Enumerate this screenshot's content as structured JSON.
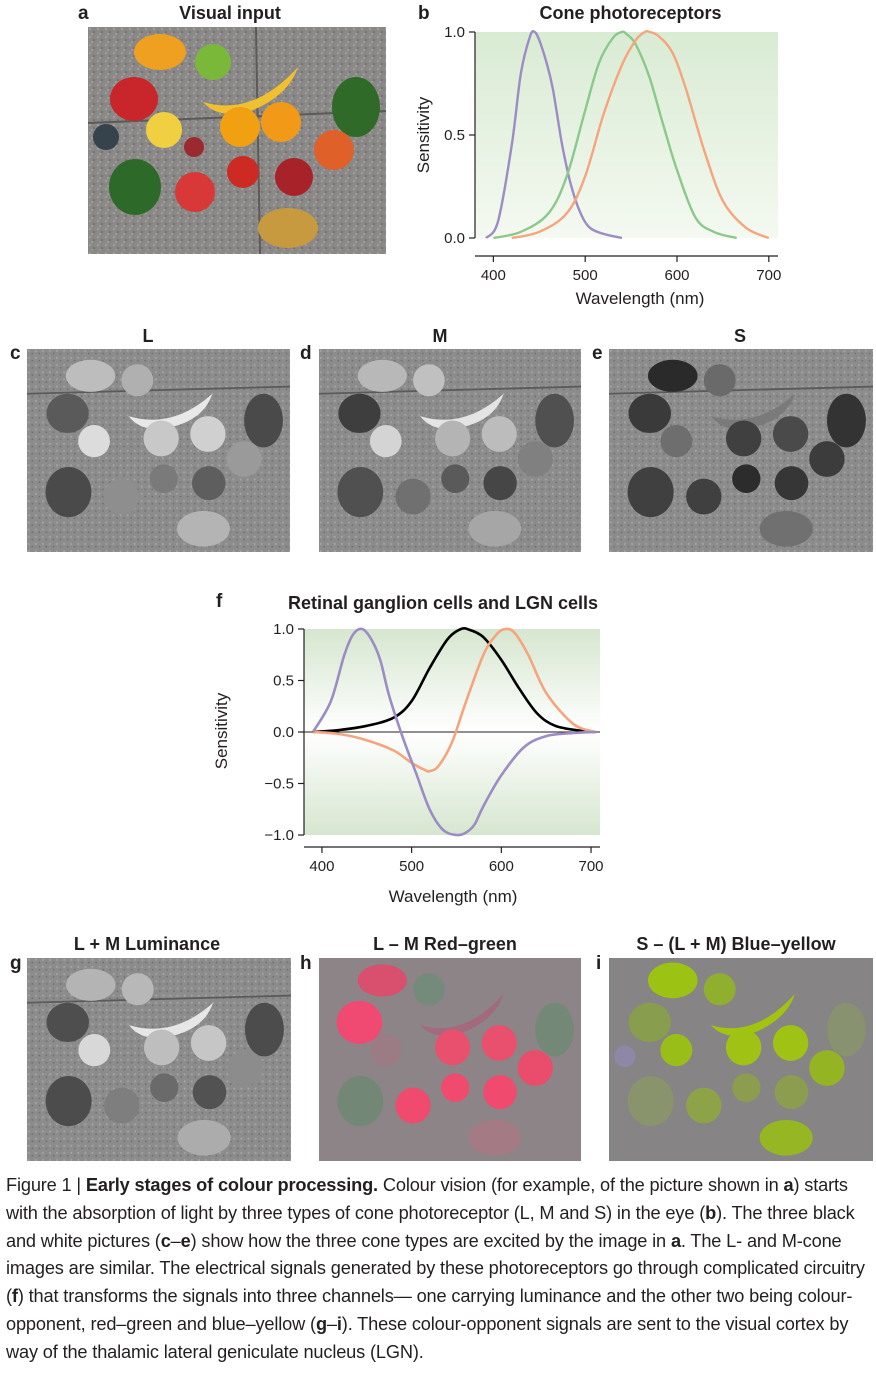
{
  "panels": {
    "a": {
      "letter": "a",
      "title": "Visual input"
    },
    "b": {
      "letter": "b",
      "title": "Cone photoreceptors"
    },
    "c": {
      "letter": "c",
      "title": "L"
    },
    "d": {
      "letter": "d",
      "title": "M"
    },
    "e": {
      "letter": "e",
      "title": "S"
    },
    "f": {
      "letter": "f",
      "title": "Retinal ganglion cells and LGN cells"
    },
    "g": {
      "letter": "g",
      "title": "L + M Luminance"
    },
    "h": {
      "letter": "h",
      "title": "L – M Red–green"
    },
    "i": {
      "letter": "i",
      "title": "S – (L + M) Blue–yellow"
    }
  },
  "chart_data": [
    {
      "type": "line",
      "panel": "b",
      "title": "Cone photoreceptors",
      "xlabel": "Wavelength (nm)",
      "ylabel": "Sensitivity",
      "xlim": [
        380,
        710
      ],
      "ylim": [
        0,
        1
      ],
      "xticks": [
        "400",
        "500",
        "600",
        "700"
      ],
      "yticks": [
        "0.0",
        "0.5",
        "1.0"
      ],
      "colors": {
        "S": "#9b8dc4",
        "M": "#8cc88c",
        "L": "#f4a57e",
        "bg_top": "#d9ebd3",
        "bg_bottom": "#f3f8ef"
      },
      "series": [
        {
          "key": "S",
          "x": [
            392,
            405,
            420,
            430,
            440,
            445,
            450,
            458,
            465,
            475,
            485,
            495,
            505,
            520,
            540
          ],
          "y": [
            0.0,
            0.08,
            0.45,
            0.8,
            0.98,
            1.0,
            0.96,
            0.85,
            0.72,
            0.45,
            0.25,
            0.12,
            0.05,
            0.02,
            0.0
          ]
        },
        {
          "key": "M",
          "x": [
            400,
            430,
            460,
            480,
            500,
            515,
            530,
            540,
            545,
            555,
            570,
            585,
            600,
            620,
            640,
            665
          ],
          "y": [
            0.0,
            0.03,
            0.12,
            0.3,
            0.62,
            0.85,
            0.97,
            1.0,
            0.99,
            0.94,
            0.78,
            0.55,
            0.33,
            0.1,
            0.03,
            0.0
          ]
        },
        {
          "key": "L",
          "x": [
            420,
            450,
            480,
            500,
            520,
            540,
            555,
            565,
            570,
            580,
            595,
            610,
            630,
            650,
            675,
            700
          ],
          "y": [
            0.0,
            0.03,
            0.12,
            0.3,
            0.6,
            0.84,
            0.96,
            1.0,
            1.0,
            0.98,
            0.9,
            0.72,
            0.42,
            0.18,
            0.05,
            0.0
          ]
        }
      ]
    },
    {
      "type": "line",
      "panel": "f",
      "title": "Retinal ganglion cells and LGN cells",
      "xlabel": "Wavelength (nm)",
      "ylabel": "Sensitivity",
      "xlim": [
        380,
        710
      ],
      "ylim": [
        -1,
        1
      ],
      "xticks": [
        "400",
        "500",
        "600",
        "700"
      ],
      "yticks": [
        "−1.0",
        "−0.5",
        "0.0",
        "0.5",
        "1.0"
      ],
      "colors": {
        "luminance": "#000000",
        "red_green": "#f4a57e",
        "blue_yellow": "#9b8dc4",
        "bg_edge": "#d6e6cf",
        "bg_mid": "#ffffff"
      },
      "series": [
        {
          "key": "luminance",
          "x": [
            390,
            420,
            450,
            480,
            500,
            520,
            540,
            555,
            565,
            580,
            600,
            620,
            640,
            660,
            690,
            705
          ],
          "y": [
            0.0,
            0.02,
            0.06,
            0.14,
            0.3,
            0.62,
            0.9,
            1.0,
            0.99,
            0.92,
            0.7,
            0.42,
            0.18,
            0.06,
            0.01,
            0.0
          ]
        },
        {
          "key": "red_green",
          "x": [
            390,
            420,
            450,
            480,
            500,
            515,
            520,
            530,
            545,
            560,
            580,
            595,
            605,
            615,
            630,
            650,
            680,
            705
          ],
          "y": [
            0.0,
            -0.02,
            -0.08,
            -0.18,
            -0.3,
            -0.37,
            -0.38,
            -0.33,
            -0.1,
            0.28,
            0.75,
            0.95,
            1.0,
            0.96,
            0.75,
            0.38,
            0.08,
            0.0
          ]
        },
        {
          "key": "blue_yellow",
          "x": [
            390,
            410,
            425,
            435,
            445,
            455,
            465,
            475,
            490,
            505,
            520,
            535,
            550,
            560,
            570,
            580,
            600,
            625,
            650,
            680,
            705
          ],
          "y": [
            0.0,
            0.3,
            0.75,
            0.95,
            1.0,
            0.9,
            0.7,
            0.35,
            -0.05,
            -0.4,
            -0.75,
            -0.95,
            -1.0,
            -0.98,
            -0.9,
            -0.72,
            -0.42,
            -0.15,
            -0.04,
            -0.01,
            0.0
          ]
        }
      ]
    }
  ],
  "caption": {
    "prefix": "Figure 1 | ",
    "heading": "Early stages of colour processing.",
    "body": [
      {
        "t": " Colour vision (for example, of the picture shown in "
      },
      {
        "b": "a"
      },
      {
        "t": ") starts with the absorption of light by three types of cone photoreceptor (L, M and S) in the eye ("
      },
      {
        "b": "b"
      },
      {
        "t": "). The three black and white pictures ("
      },
      {
        "b": "c"
      },
      {
        "t": "–"
      },
      {
        "b": "e"
      },
      {
        "t": ") show how the three cone types are excited by the image in "
      },
      {
        "b": "a"
      },
      {
        "t": ". The L- and M-cone images are similar. The electrical signals generated by these photoreceptors go through complicated circuitry ("
      },
      {
        "b": "f"
      },
      {
        "t": ") that transforms the signals into three channels— one carrying luminance and the other two being colour-opponent, red–green and blue–yellow ("
      },
      {
        "b": "g"
      },
      {
        "t": "–"
      },
      {
        "b": "i"
      },
      {
        "t": "). These colour-opponent signals are sent to the visual cortex by way of the thalamic lateral geniculate nucleus (LGN)."
      }
    ]
  }
}
